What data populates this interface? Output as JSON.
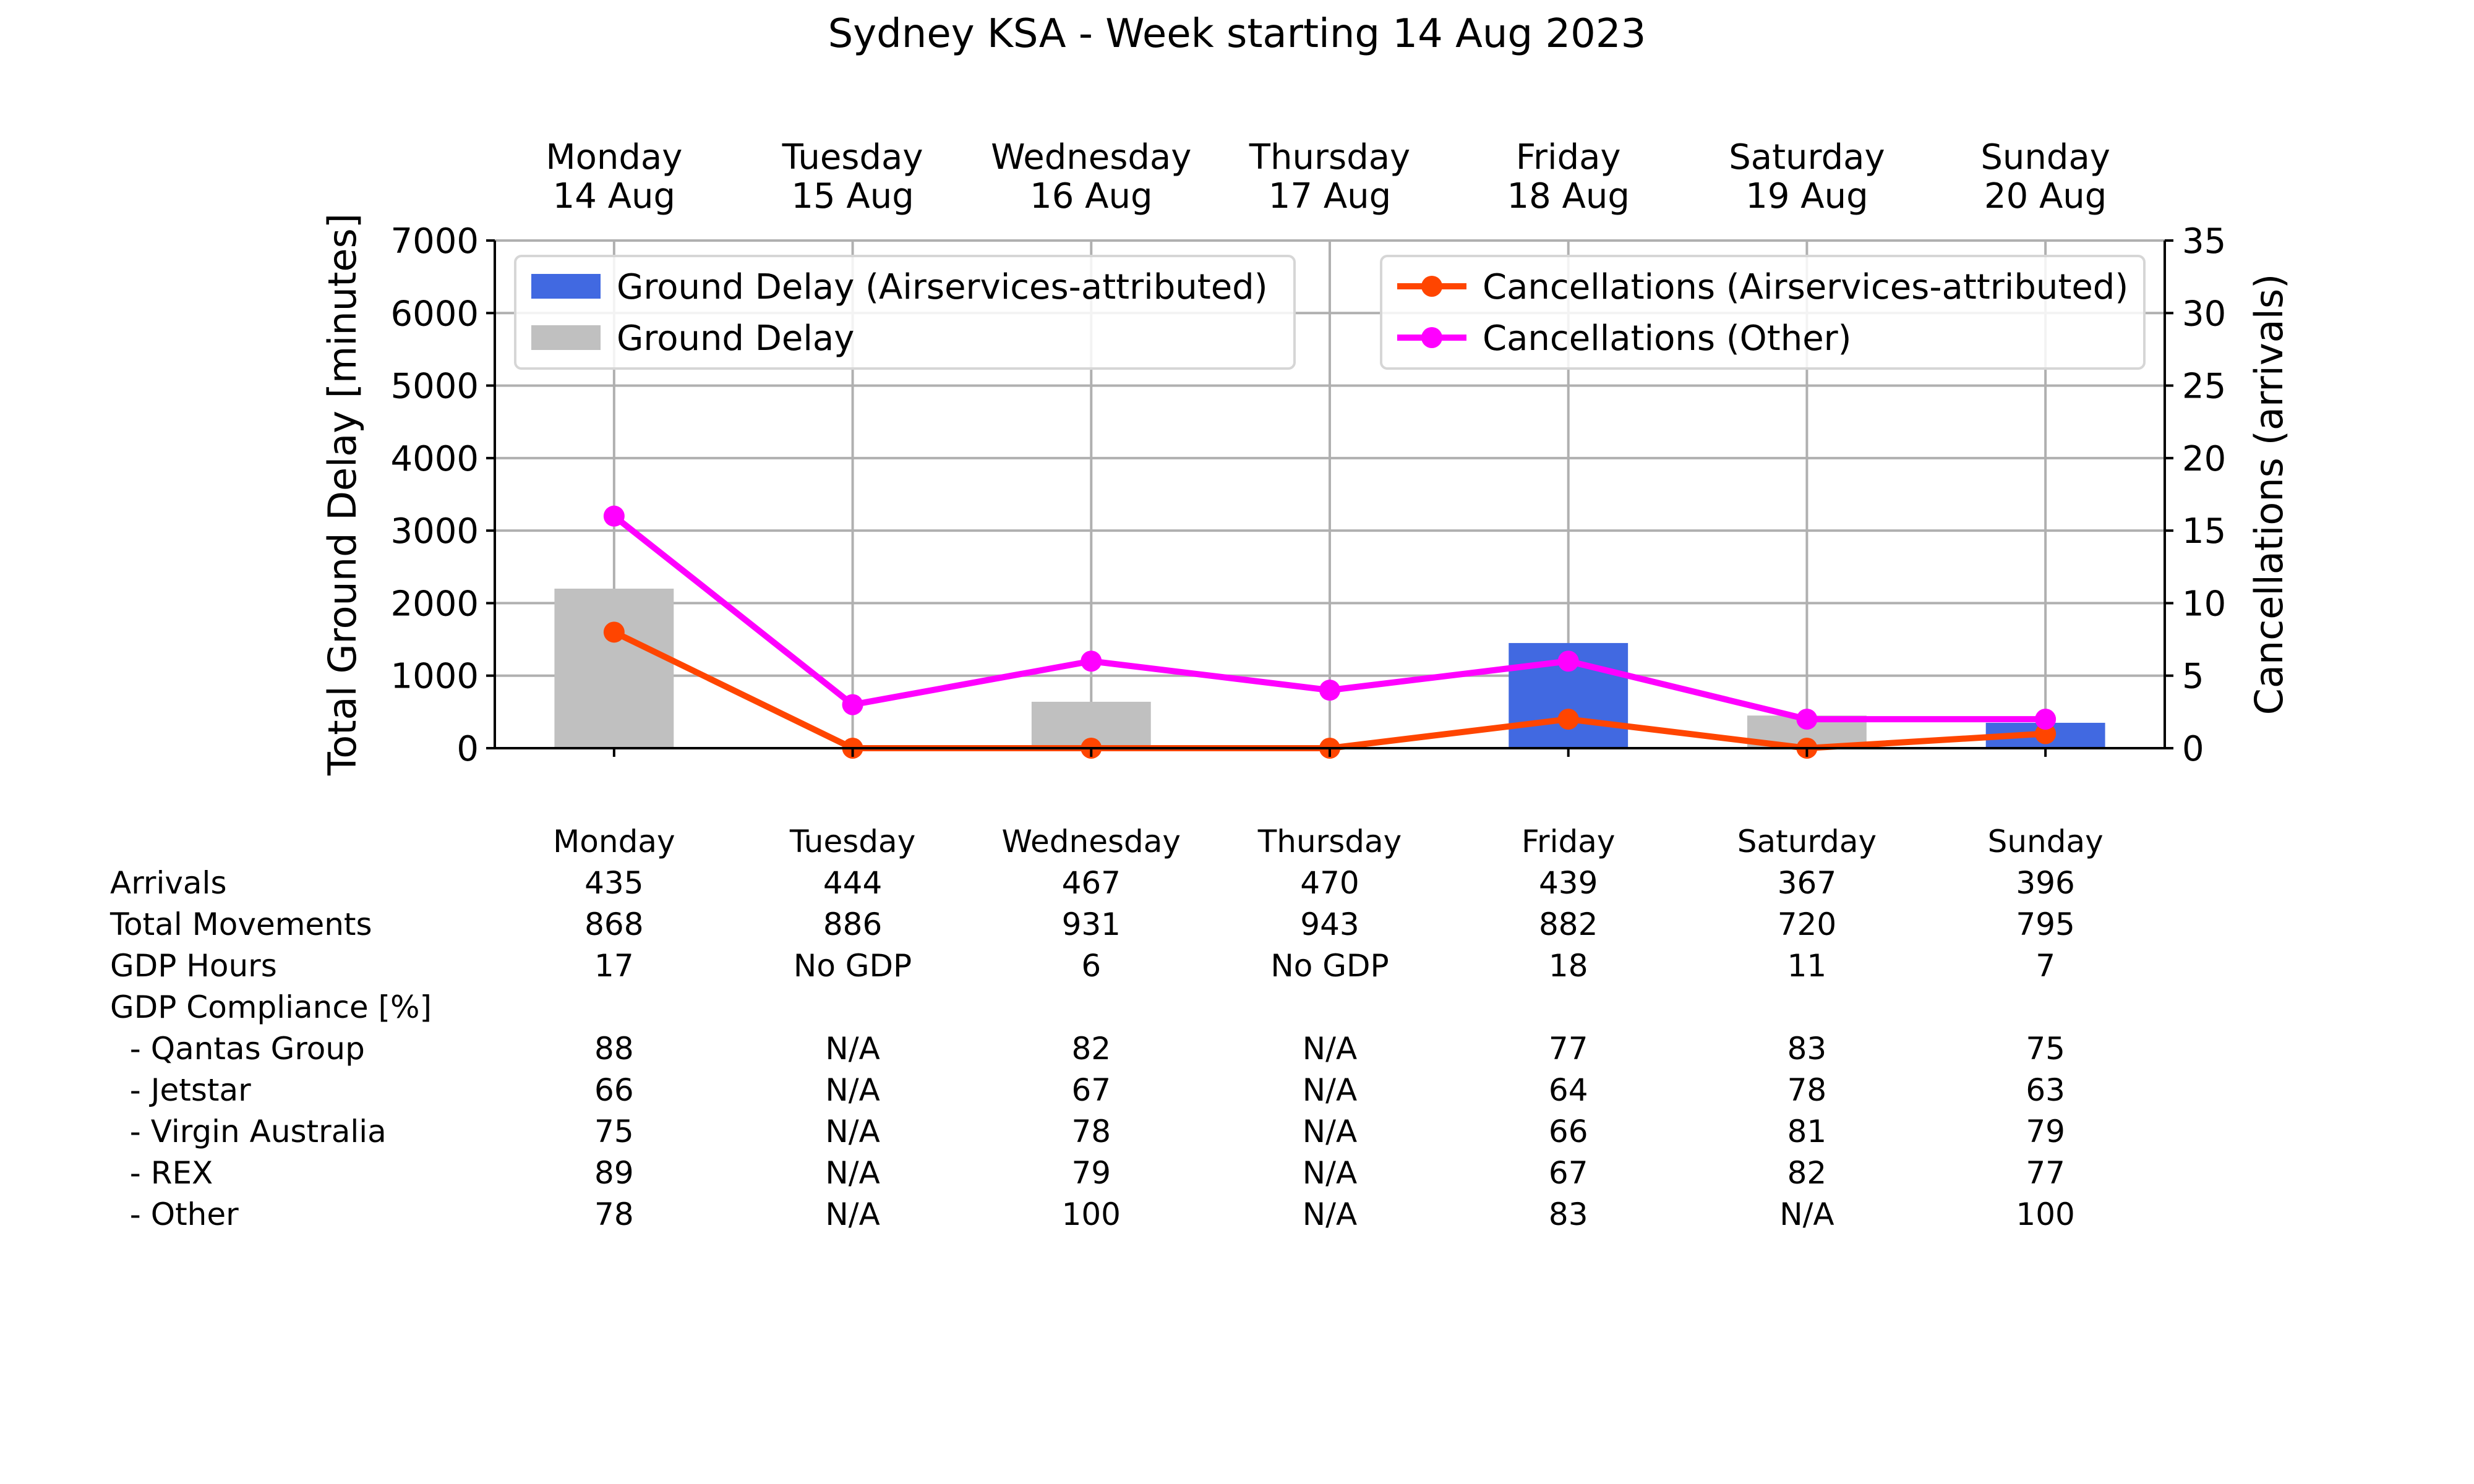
{
  "chart_data": {
    "type": "bar",
    "title": "Sydney KSA - Week starting 14 Aug 2023",
    "categories": [
      "Monday",
      "Tuesday",
      "Wednesday",
      "Thursday",
      "Friday",
      "Saturday",
      "Sunday"
    ],
    "top_labels": [
      [
        "Monday",
        "14 Aug"
      ],
      [
        "Tuesday",
        "15 Aug"
      ],
      [
        "Wednesday",
        "16 Aug"
      ],
      [
        "Thursday",
        "17 Aug"
      ],
      [
        "Friday",
        "18 Aug"
      ],
      [
        "Saturday",
        "19 Aug"
      ],
      [
        "Sunday",
        "20 Aug"
      ]
    ],
    "ylabel_left": "Total Ground Delay [minutes]",
    "ylabel_right": "Cancellations (arrivals)",
    "ylim_left": [
      0,
      7000
    ],
    "yticks_left": [
      0,
      1000,
      2000,
      3000,
      4000,
      5000,
      6000,
      7000
    ],
    "ylim_right": [
      0,
      35
    ],
    "yticks_right": [
      0,
      5,
      10,
      15,
      20,
      25,
      30,
      35
    ],
    "grid": true,
    "bar_series": [
      {
        "name": "Ground Delay (Airservices-attributed)",
        "color": "#4169e1",
        "values": [
          0,
          0,
          0,
          0,
          1450,
          0,
          350
        ]
      },
      {
        "name": "Ground Delay",
        "color": "#c0c0c0",
        "values": [
          2200,
          0,
          640,
          0,
          0,
          450,
          0
        ]
      }
    ],
    "line_series": [
      {
        "name": "Cancellations (Airservices-attributed)",
        "color": "#ff4500",
        "values": [
          8,
          0,
          0,
          0,
          2,
          0,
          1
        ]
      },
      {
        "name": "Cancellations (Other)",
        "color": "#ff00ff",
        "values": [
          16,
          3,
          6,
          4,
          6,
          2,
          2
        ]
      }
    ],
    "legend_left_placement": "upper-left",
    "legend_right_placement": "upper-right"
  },
  "stats_table": {
    "header": [
      "Monday",
      "Tuesday",
      "Wednesday",
      "Thursday",
      "Friday",
      "Saturday",
      "Sunday"
    ],
    "rows": [
      {
        "label": "Arrivals",
        "values": [
          "435",
          "444",
          "467",
          "470",
          "439",
          "367",
          "396"
        ]
      },
      {
        "label": "Total Movements",
        "values": [
          "868",
          "886",
          "931",
          "943",
          "882",
          "720",
          "795"
        ]
      },
      {
        "label": "GDP Hours",
        "values": [
          "17",
          "No GDP",
          "6",
          "No GDP",
          "18",
          "11",
          "7"
        ]
      },
      {
        "label": "GDP Compliance [%]",
        "values": [
          "",
          "",
          "",
          "",
          "",
          "",
          ""
        ]
      },
      {
        "label": "  - Qantas Group",
        "values": [
          "88",
          "N/A",
          "82",
          "N/A",
          "77",
          "83",
          "75"
        ]
      },
      {
        "label": "  - Jetstar",
        "values": [
          "66",
          "N/A",
          "67",
          "N/A",
          "64",
          "78",
          "63"
        ]
      },
      {
        "label": "  - Virgin Australia",
        "values": [
          "75",
          "N/A",
          "78",
          "N/A",
          "66",
          "81",
          "79"
        ]
      },
      {
        "label": "  - REX",
        "values": [
          "89",
          "N/A",
          "79",
          "N/A",
          "67",
          "82",
          "77"
        ]
      },
      {
        "label": "  - Other",
        "values": [
          "78",
          "N/A",
          "100",
          "N/A",
          "83",
          "N/A",
          "100"
        ]
      }
    ]
  }
}
